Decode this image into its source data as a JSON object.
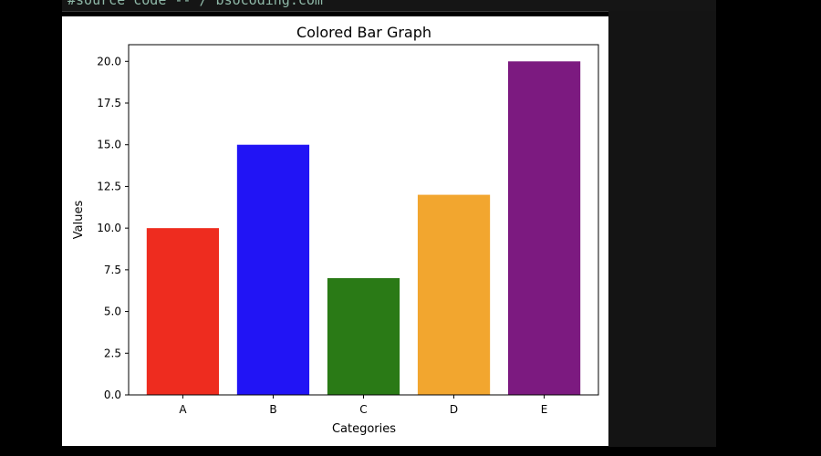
{
  "terminal": {
    "top_line": "#source code -- / bsocoding.com"
  },
  "chart_data": {
    "type": "bar",
    "title": "Colored Bar Graph",
    "xlabel": "Categories",
    "ylabel": "Values",
    "categories": [
      "A",
      "B",
      "C",
      "D",
      "E"
    ],
    "values": [
      10,
      15,
      7,
      12,
      20
    ],
    "colors": [
      "#ee2c1f",
      "#2114f5",
      "#2a7a16",
      "#f2a62f",
      "#7c1a80"
    ],
    "ylim": [
      0,
      21
    ],
    "yticks": [
      0.0,
      2.5,
      5.0,
      7.5,
      10.0,
      12.5,
      15.0,
      17.5,
      20.0
    ],
    "ytick_labels": [
      "0.0",
      "2.5",
      "5.0",
      "7.5",
      "10.0",
      "12.5",
      "15.0",
      "17.5",
      "20.0"
    ],
    "grid": false,
    "legend": "none"
  }
}
